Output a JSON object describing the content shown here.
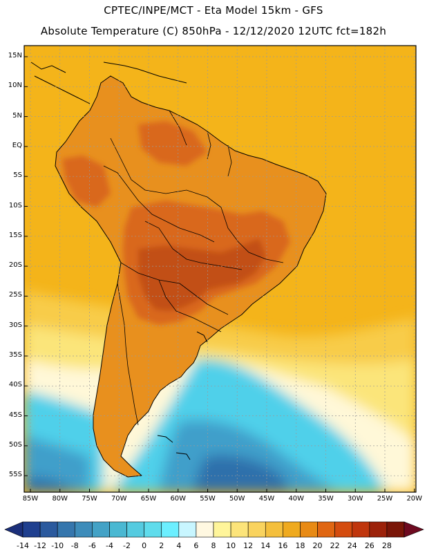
{
  "header": {
    "line1": "CPTEC/INPE/MCT -  Eta Model 15km - GFS",
    "line2": "Absolute Temperature (C) 850hPa - 12/12/2020 12UTC fct=182h"
  },
  "axes": {
    "lat_labels": [
      "15N",
      "10N",
      "5N",
      "EQ",
      "5S",
      "10S",
      "15S",
      "20S",
      "25S",
      "30S",
      "35S",
      "40S",
      "45S",
      "50S",
      "55S"
    ],
    "lon_labels": [
      "85W",
      "80W",
      "75W",
      "70W",
      "65W",
      "60W",
      "55W",
      "50W",
      "45W",
      "40W",
      "35W",
      "30W",
      "25W",
      "20W"
    ]
  },
  "colorbar": {
    "labels": [
      "-14",
      "-12",
      "-10",
      "-8",
      "-6",
      "-4",
      "-2",
      "0",
      "2",
      "4",
      "6",
      "8",
      "10",
      "12",
      "14",
      "16",
      "18",
      "20",
      "22",
      "24",
      "26",
      "28"
    ],
    "colors": [
      "#1f3f8f",
      "#2b5a9e",
      "#3576ad",
      "#3d8cba",
      "#43a2c6",
      "#4ab8d2",
      "#55cbe0",
      "#5fdcec",
      "#6cefff",
      "#c8f6ff",
      "#fff8e1",
      "#fff59a",
      "#fce47a",
      "#f9d35e",
      "#f4bf3c",
      "#efaa1e",
      "#e88a14",
      "#e06612",
      "#d44c0f",
      "#c0360d",
      "#9c220a",
      "#7a1608"
    ],
    "low_arrow_color": "#1b2f7a",
    "high_arrow_color": "#6e0a20"
  },
  "map": {
    "colors": {
      "ocean_warm": "#f4b41a",
      "ocean_mild": "#f8cc4a",
      "ocean_cool": "#fbe57a",
      "ocean_pale": "#fff8d8",
      "ocean_cold": "#4fd0ea",
      "ocean_colder": "#3f9fca",
      "ocean_coldest": "#2f6fab",
      "land_warm": "#e8901e",
      "land_hot": "#d9681c",
      "land_hottest": "#c24f18",
      "coast": "#000000",
      "grid": "#9a9a9a"
    }
  }
}
